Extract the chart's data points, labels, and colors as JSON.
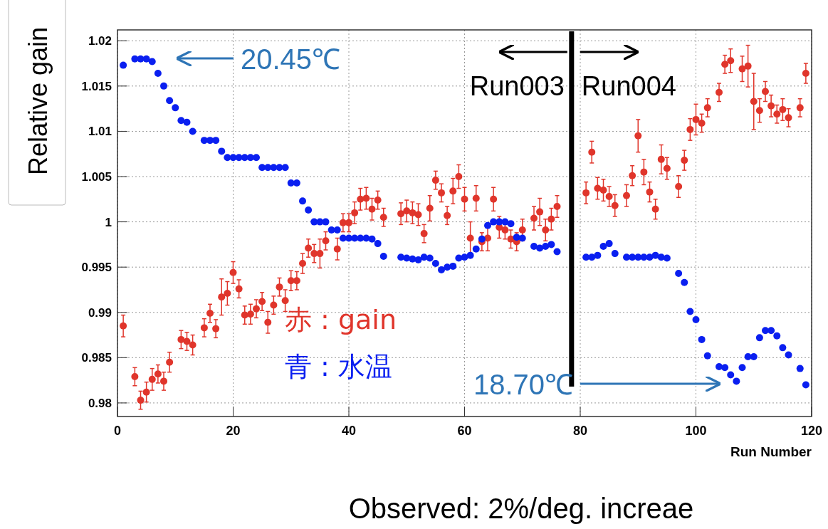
{
  "chart_data": {
    "type": "scatter",
    "xlabel": "Run Number",
    "ylabel": "Relative gain",
    "xlim": [
      0,
      120
    ],
    "xticks": [
      0,
      20,
      40,
      60,
      80,
      100,
      120
    ],
    "ylim": [
      0.9785,
      1.0212
    ],
    "yticks": [
      0.98,
      0.985,
      0.99,
      0.995,
      1,
      1.005,
      1.01,
      1.015,
      1.02
    ],
    "grid": true,
    "marker": "circle",
    "legend": "bottom",
    "series": [
      {
        "name": "赤 : gain",
        "color": "#e0352b",
        "x": [
          1,
          3,
          4,
          5,
          6,
          7,
          8,
          9,
          11,
          12,
          13,
          15,
          16,
          17,
          18,
          19,
          20,
          21,
          22,
          23,
          24,
          25,
          26,
          27,
          28,
          29,
          30,
          31,
          32,
          33,
          34,
          35,
          36,
          38,
          39,
          40,
          41,
          42,
          43,
          44,
          45,
          46,
          49,
          50,
          51,
          52,
          53,
          54,
          55,
          56,
          57,
          58,
          59,
          60,
          61,
          62,
          63,
          64,
          65,
          66,
          67,
          68,
          69,
          70,
          72,
          73,
          74,
          75,
          76,
          81,
          82,
          83,
          84,
          85,
          86,
          88,
          89,
          90,
          91,
          92,
          93,
          94,
          95,
          97,
          98,
          99,
          100,
          101,
          102,
          104,
          105,
          106,
          108,
          109,
          110,
          111,
          112,
          113,
          114,
          115,
          116,
          118,
          119
        ],
        "values": [
          0.9885,
          0.9829,
          0.9803,
          0.9812,
          0.9826,
          0.9832,
          0.9824,
          0.9845,
          0.987,
          0.9868,
          0.9864,
          0.9883,
          0.9899,
          0.9882,
          0.9917,
          0.9921,
          0.9944,
          0.9926,
          0.9897,
          0.9898,
          0.9904,
          0.9912,
          0.9889,
          0.9908,
          0.9928,
          0.9913,
          0.9935,
          0.9935,
          0.9954,
          0.9971,
          0.9965,
          0.9965,
          0.9979,
          0.997,
          0.9999,
          0.9999,
          1.001,
          1.0025,
          1.0026,
          1.0014,
          1.0024,
          1.0005,
          1.0009,
          1.0012,
          1.001,
          1.0008,
          0.9987,
          1.0015,
          1.0046,
          1.0032,
          1.0007,
          1.0034,
          1.005,
          1.0025,
          0.9982,
          1.0026,
          0.9978,
          0.9982,
          1.0025,
          0.9994,
          0.9991,
          0.9981,
          0.9978,
          0.9991,
          1.0004,
          1.0011,
          0.9991,
          1.0003,
          1.0017,
          1.0032,
          1.0077,
          1.0037,
          1.0035,
          1.0028,
          1.0018,
          1.0029,
          1.0051,
          1.0095,
          1.0055,
          1.0033,
          1.0014,
          1.0069,
          1.0059,
          1.0039,
          1.0068,
          1.0102,
          1.0113,
          1.0109,
          1.0126,
          1.0143,
          1.0174,
          1.0178,
          1.0169,
          1.0172,
          1.0133,
          1.0123,
          1.0144,
          1.0128,
          1.0119,
          1.0124,
          1.0115,
          1.0126,
          1.0164
        ],
        "errors": [
          0.0012,
          0.001,
          0.001,
          0.0011,
          0.0012,
          0.001,
          0.001,
          0.0011,
          0.001,
          0.001,
          0.0011,
          0.001,
          0.001,
          0.001,
          0.002,
          0.0013,
          0.0012,
          0.001,
          0.001,
          0.0011,
          0.001,
          0.001,
          0.0012,
          0.001,
          0.001,
          0.0012,
          0.0011,
          0.001,
          0.0011,
          0.001,
          0.001,
          0.0016,
          0.001,
          0.0012,
          0.001,
          0.001,
          0.0012,
          0.0012,
          0.0012,
          0.0012,
          0.001,
          0.001,
          0.0012,
          0.0012,
          0.0012,
          0.0012,
          0.001,
          0.0014,
          0.001,
          0.001,
          0.001,
          0.0014,
          0.0013,
          0.0013,
          0.0018,
          0.0014,
          0.001,
          0.0014,
          0.0013,
          0.0012,
          0.001,
          0.001,
          0.001,
          0.0012,
          0.0013,
          0.0015,
          0.0012,
          0.0012,
          0.0012,
          0.0012,
          0.0012,
          0.0012,
          0.0012,
          0.0011,
          0.0012,
          0.0012,
          0.0011,
          0.0018,
          0.0014,
          0.0011,
          0.0011,
          0.0016,
          0.0012,
          0.0012,
          0.0011,
          0.0012,
          0.0017,
          0.001,
          0.001,
          0.001,
          0.001,
          0.0013,
          0.0014,
          0.0023,
          0.0031,
          0.0013,
          0.0011,
          0.0012,
          0.001,
          0.0012,
          0.001,
          0.001,
          0.0011
        ]
      },
      {
        "name": "青 : 水温",
        "color": "#0a1ff0",
        "x": [
          1,
          3,
          4,
          5,
          6,
          7,
          8,
          9,
          10,
          11,
          12,
          13,
          15,
          16,
          17,
          18,
          19,
          20,
          21,
          22,
          23,
          24,
          25,
          26,
          27,
          28,
          29,
          30,
          31,
          32,
          33,
          34,
          35,
          36,
          37,
          38,
          39,
          40,
          41,
          42,
          43,
          44,
          45,
          46,
          49,
          50,
          51,
          52,
          53,
          54,
          55,
          56,
          57,
          58,
          59,
          60,
          61,
          62,
          63,
          64,
          65,
          66,
          67,
          68,
          69,
          70,
          72,
          73,
          74,
          75,
          76,
          81,
          82,
          83,
          84,
          85,
          86,
          88,
          89,
          90,
          91,
          92,
          93,
          94,
          95,
          97,
          98,
          99,
          100,
          101,
          102,
          104,
          105,
          106,
          107,
          108,
          109,
          110,
          111,
          112,
          113,
          114,
          115,
          116,
          118,
          119
        ],
        "values": [
          1.0173,
          1.018,
          1.018,
          1.018,
          1.0177,
          1.0164,
          1.015,
          1.0134,
          1.0126,
          1.0112,
          1.011,
          1.01,
          1.009,
          1.009,
          1.009,
          1.0078,
          1.0071,
          1.0071,
          1.0071,
          1.0071,
          1.0071,
          1.0071,
          1.006,
          1.006,
          1.006,
          1.006,
          1.006,
          1.0043,
          1.0043,
          1.0023,
          1.0013,
          1,
          1,
          1,
          0.9991,
          0.9991,
          0.9982,
          0.9982,
          0.9982,
          0.9982,
          0.9982,
          0.9981,
          0.9976,
          0.9962,
          0.9961,
          0.996,
          0.9959,
          0.9958,
          0.9961,
          0.996,
          0.9954,
          0.9947,
          0.995,
          0.9951,
          0.996,
          0.9961,
          0.9963,
          0.997,
          0.9981,
          0.9996,
          1,
          1,
          1,
          0.9998,
          0.9983,
          0.9982,
          0.9973,
          0.9971,
          0.9973,
          0.9975,
          0.9967,
          0.9961,
          0.9961,
          0.9963,
          0.9973,
          0.9976,
          0.9965,
          0.9961,
          0.9961,
          0.9961,
          0.9961,
          0.9961,
          0.9963,
          0.9961,
          0.996,
          0.9943,
          0.9933,
          0.9901,
          0.9892,
          0.987,
          0.9852,
          0.984,
          0.9839,
          0.9831,
          0.9824,
          0.9839,
          0.9851,
          0.9851,
          0.9872,
          0.988,
          0.988,
          0.9874,
          0.9861,
          0.9853,
          0.9838,
          0.982
        ]
      }
    ],
    "ref_lines": [
      {
        "axis": "x",
        "value": 78.5,
        "color": "#000000"
      }
    ],
    "annotations": [
      "20.45℃",
      "18.70℃",
      "Run003",
      "Run004",
      "Observed: 2%/deg. increae"
    ]
  }
}
